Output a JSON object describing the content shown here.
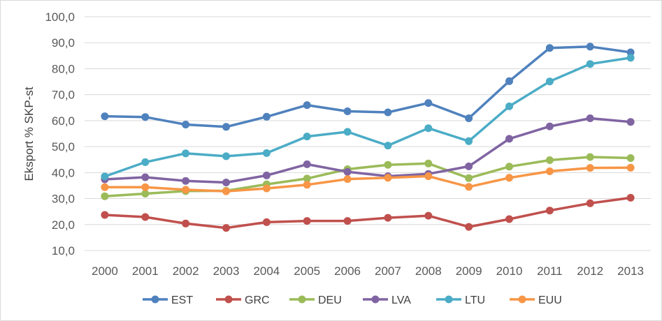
{
  "chart_data": {
    "type": "line",
    "title": "",
    "xlabel": "",
    "ylabel": "Eksport % SKP-st",
    "ylim": [
      10,
      100
    ],
    "yticks": [
      "10,0",
      "20,0",
      "30,0",
      "40,0",
      "50,0",
      "60,0",
      "70,0",
      "80,0",
      "90,0",
      "100,0"
    ],
    "grid": true,
    "legend_position": "bottom",
    "categories": [
      "2000",
      "2001",
      "2002",
      "2003",
      "2004",
      "2005",
      "2006",
      "2007",
      "2008",
      "2009",
      "2010",
      "2011",
      "2012",
      "2013"
    ],
    "series": [
      {
        "name": "EST",
        "color": "#4F81BD",
        "values": [
          61.7,
          61.4,
          58.5,
          57.6,
          61.5,
          66.0,
          63.6,
          63.2,
          66.8,
          60.9,
          75.2,
          88.0,
          88.5,
          86.3
        ]
      },
      {
        "name": "GRC",
        "color": "#C0504D",
        "values": [
          23.7,
          22.9,
          20.4,
          18.7,
          20.9,
          21.4,
          21.4,
          22.6,
          23.4,
          19.1,
          22.1,
          25.4,
          28.2,
          30.3
        ]
      },
      {
        "name": "DEU",
        "color": "#9BBB59",
        "values": [
          30.9,
          31.9,
          32.9,
          33.0,
          35.5,
          37.7,
          41.3,
          43.0,
          43.5,
          37.9,
          42.3,
          44.8,
          46.0,
          45.6
        ]
      },
      {
        "name": "LVA",
        "color": "#8064A2",
        "values": [
          37.4,
          38.2,
          36.8,
          36.2,
          38.9,
          43.2,
          40.3,
          38.6,
          39.5,
          42.4,
          53.0,
          57.8,
          60.9,
          59.5
        ]
      },
      {
        "name": "LTU",
        "color": "#4BACC6",
        "values": [
          38.5,
          44.0,
          47.4,
          46.3,
          47.5,
          53.9,
          55.7,
          50.4,
          57.1,
          52.1,
          65.5,
          75.1,
          81.8,
          84.2
        ]
      },
      {
        "name": "EUU",
        "color": "#F79646",
        "values": [
          34.4,
          34.4,
          33.4,
          32.8,
          33.9,
          35.3,
          37.5,
          38.0,
          38.6,
          34.5,
          38.0,
          40.5,
          41.8,
          41.9
        ]
      }
    ]
  }
}
